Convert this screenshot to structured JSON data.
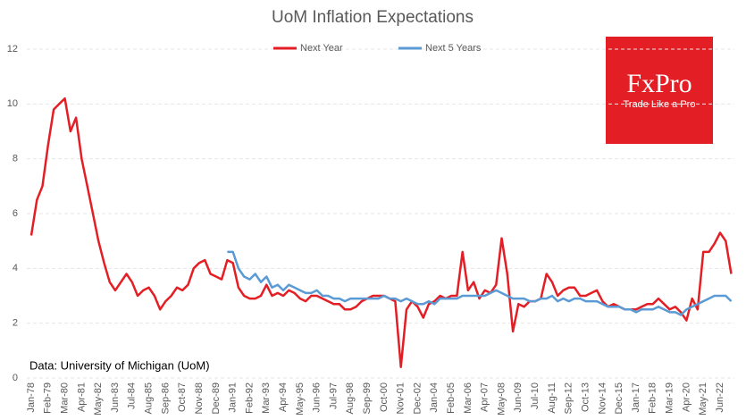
{
  "chart_data": {
    "type": "line",
    "title": "UoM Inflation Expectations",
    "categories": [
      "Jan-78",
      null,
      null,
      "Feb-79",
      null,
      null,
      "Mar-80",
      null,
      null,
      "Apr-81",
      null,
      null,
      "May-82",
      null,
      null,
      "Jun-83",
      null,
      null,
      "Jul-84",
      null,
      null,
      "Aug-85",
      null,
      null,
      "Sep-86",
      null,
      null,
      "Oct-87",
      null,
      null,
      "Nov-88",
      null,
      null,
      "Dec-89",
      null,
      null,
      "Jan-91",
      null,
      null,
      "Feb-92",
      null,
      null,
      "Mar-93",
      null,
      null,
      "Apr-94",
      null,
      null,
      "May-95",
      null,
      null,
      "Jun-96",
      null,
      null,
      "Jul-97",
      null,
      null,
      "Aug-98",
      null,
      null,
      "Sep-99",
      null,
      null,
      "Oct-00",
      null,
      null,
      "Nov-01",
      null,
      null,
      "Dec-02",
      null,
      null,
      "Jan-04",
      null,
      null,
      "Feb-05",
      null,
      null,
      "Mar-06",
      null,
      null,
      "Apr-07",
      null,
      null,
      "May-08",
      null,
      null,
      "Jun-09",
      null,
      null,
      "Jul-10",
      null,
      null,
      "Aug-11",
      null,
      null,
      "Sep-12",
      null,
      null,
      "Oct-13",
      null,
      null,
      "Nov-14",
      null,
      null,
      "Dec-15",
      null,
      null,
      "Jan-17",
      null,
      null,
      "Feb-18",
      null,
      null,
      "Mar-19",
      null,
      null,
      "Apr-20",
      null,
      null,
      "May-21",
      null,
      null,
      "Jun-22",
      null,
      null
    ],
    "series": [
      {
        "name": "Next Year",
        "color": "#e31e24",
        "values": [
          5.2,
          6.5,
          7.0,
          8.5,
          9.8,
          10.0,
          10.2,
          9.0,
          9.5,
          8.0,
          7.0,
          6.0,
          5.0,
          4.2,
          3.5,
          3.2,
          3.5,
          3.8,
          3.5,
          3.0,
          3.2,
          3.3,
          3.0,
          2.5,
          2.8,
          3.0,
          3.3,
          3.2,
          3.4,
          4.0,
          4.2,
          4.3,
          3.8,
          3.7,
          3.6,
          4.3,
          4.2,
          3.3,
          3.0,
          2.9,
          2.9,
          3.0,
          3.4,
          3.0,
          3.1,
          3.0,
          3.2,
          3.1,
          2.9,
          2.8,
          3.0,
          3.0,
          2.9,
          2.8,
          2.7,
          2.7,
          2.5,
          2.5,
          2.6,
          2.8,
          2.9,
          3.0,
          3.0,
          3.0,
          2.9,
          2.8,
          0.4,
          2.5,
          2.8,
          2.6,
          2.2,
          2.7,
          2.8,
          3.0,
          2.9,
          3.0,
          3.0,
          4.6,
          3.2,
          3.5,
          2.9,
          3.2,
          3.1,
          3.4,
          5.1,
          3.8,
          1.7,
          2.7,
          2.6,
          2.8,
          2.8,
          2.9,
          3.8,
          3.5,
          3.0,
          3.2,
          3.3,
          3.3,
          3.0,
          3.0,
          3.1,
          3.2,
          2.8,
          2.6,
          2.7,
          2.6,
          2.5,
          2.5,
          2.5,
          2.6,
          2.7,
          2.7,
          2.9,
          2.7,
          2.5,
          2.6,
          2.4,
          2.1,
          2.9,
          2.5,
          4.6,
          4.6,
          4.9,
          5.3,
          5.0,
          3.8
        ]
      },
      {
        "name": "Next 5 Years",
        "color": "#5b9bd5",
        "values": [
          null,
          null,
          null,
          null,
          null,
          null,
          null,
          null,
          null,
          null,
          null,
          null,
          null,
          null,
          null,
          null,
          null,
          null,
          null,
          null,
          null,
          null,
          null,
          null,
          null,
          null,
          null,
          null,
          null,
          null,
          null,
          null,
          null,
          null,
          null,
          4.6,
          4.6,
          4.0,
          3.7,
          3.6,
          3.8,
          3.5,
          3.7,
          3.3,
          3.4,
          3.2,
          3.4,
          3.3,
          3.2,
          3.1,
          3.1,
          3.2,
          3.0,
          3.0,
          2.9,
          2.9,
          2.8,
          2.9,
          2.9,
          2.9,
          2.9,
          2.9,
          2.9,
          3.0,
          2.9,
          2.9,
          2.8,
          2.9,
          2.8,
          2.7,
          2.7,
          2.8,
          2.7,
          2.9,
          2.9,
          2.9,
          2.9,
          3.0,
          3.0,
          3.0,
          3.0,
          3.0,
          3.1,
          3.2,
          3.1,
          3.0,
          2.9,
          2.9,
          2.9,
          2.8,
          2.8,
          2.9,
          2.9,
          3.0,
          2.8,
          2.9,
          2.8,
          2.9,
          2.9,
          2.8,
          2.8,
          2.8,
          2.7,
          2.6,
          2.6,
          2.6,
          2.5,
          2.5,
          2.4,
          2.5,
          2.5,
          2.5,
          2.6,
          2.5,
          2.4,
          2.4,
          2.3,
          2.5,
          2.6,
          2.7,
          2.8,
          2.9,
          3.0,
          3.0,
          3.0,
          2.8
        ]
      }
    ],
    "ylim": [
      0,
      12
    ],
    "yticks": [
      0,
      2,
      4,
      6,
      8,
      10,
      12
    ],
    "grid": true,
    "annotation": "Data: University of Michigan (UoM)"
  },
  "logo": {
    "brand": "FxPro",
    "tagline": "Trade Like a Pro"
  }
}
